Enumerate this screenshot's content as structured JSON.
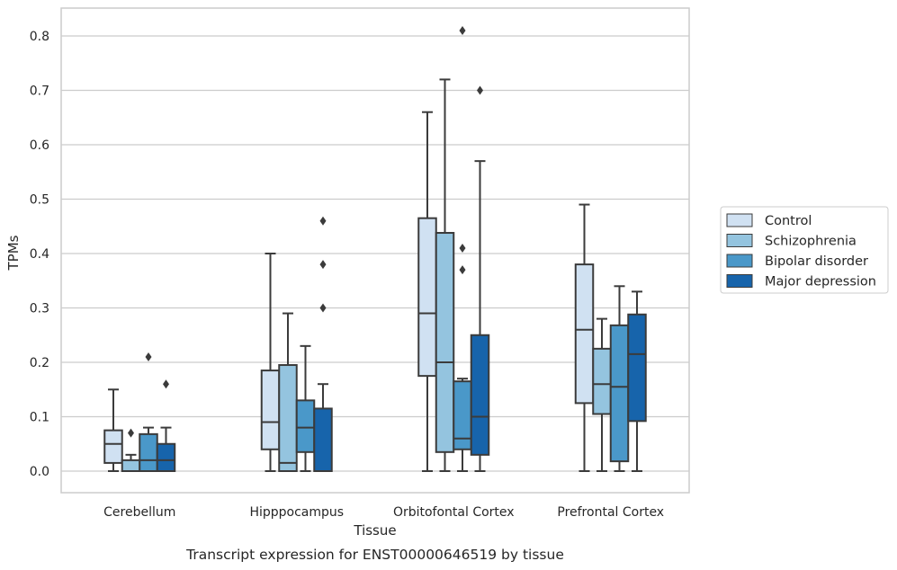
{
  "chart_data": {
    "type": "box",
    "xlabel": "Tissue",
    "ylabel": "TPMs",
    "caption": "Transcript expression for ENST00000646519 by tissue",
    "ylim": [
      -0.04,
      0.85
    ],
    "yticks": [
      "0.0",
      "0.1",
      "0.2",
      "0.3",
      "0.4",
      "0.5",
      "0.6",
      "0.7",
      "0.8"
    ],
    "grid": true,
    "legend_position": "right",
    "categories": [
      "Cerebellum",
      "Hipppocampus",
      "Orbitofontal Cortex",
      "Prefrontal Cortex"
    ],
    "series": [
      {
        "name": "Control",
        "color": "#d0e1f2",
        "boxes": [
          {
            "whisker_low": 0.0,
            "q1": 0.015,
            "median": 0.05,
            "q3": 0.075,
            "whisker_high": 0.15,
            "outliers": []
          },
          {
            "whisker_low": 0.0,
            "q1": 0.04,
            "median": 0.09,
            "q3": 0.185,
            "whisker_high": 0.4,
            "outliers": []
          },
          {
            "whisker_low": 0.0,
            "q1": 0.175,
            "median": 0.29,
            "q3": 0.465,
            "whisker_high": 0.66,
            "outliers": []
          },
          {
            "whisker_low": 0.0,
            "q1": 0.125,
            "median": 0.26,
            "q3": 0.38,
            "whisker_high": 0.49,
            "outliers": []
          }
        ]
      },
      {
        "name": "Schizophrenia",
        "color": "#94c4df",
        "boxes": [
          {
            "whisker_low": 0.0,
            "q1": 0.0,
            "median": 0.0,
            "q3": 0.02,
            "whisker_high": 0.03,
            "outliers": [
              0.07
            ]
          },
          {
            "whisker_low": 0.0,
            "q1": 0.0,
            "median": 0.015,
            "q3": 0.195,
            "whisker_high": 0.29,
            "outliers": []
          },
          {
            "whisker_low": 0.0,
            "q1": 0.035,
            "median": 0.2,
            "q3": 0.438,
            "whisker_high": 0.72,
            "outliers": []
          },
          {
            "whisker_low": 0.0,
            "q1": 0.105,
            "median": 0.16,
            "q3": 0.225,
            "whisker_high": 0.28,
            "outliers": []
          }
        ]
      },
      {
        "name": "Bipolar disorder",
        "color": "#4a98c9",
        "boxes": [
          {
            "whisker_low": 0.0,
            "q1": 0.0,
            "median": 0.02,
            "q3": 0.068,
            "whisker_high": 0.08,
            "outliers": [
              0.21
            ]
          },
          {
            "whisker_low": 0.0,
            "q1": 0.035,
            "median": 0.08,
            "q3": 0.13,
            "whisker_high": 0.23,
            "outliers": []
          },
          {
            "whisker_low": 0.0,
            "q1": 0.04,
            "median": 0.06,
            "q3": 0.165,
            "whisker_high": 0.17,
            "outliers": [
              0.37,
              0.41,
              0.81
            ]
          },
          {
            "whisker_low": 0.0,
            "q1": 0.018,
            "median": 0.155,
            "q3": 0.268,
            "whisker_high": 0.34,
            "outliers": []
          }
        ]
      },
      {
        "name": "Major depression",
        "color": "#1764ab",
        "boxes": [
          {
            "whisker_low": 0.0,
            "q1": 0.0,
            "median": 0.02,
            "q3": 0.05,
            "whisker_high": 0.08,
            "outliers": [
              0.16
            ]
          },
          {
            "whisker_low": 0.0,
            "q1": 0.0,
            "median": 0.0,
            "q3": 0.115,
            "whisker_high": 0.16,
            "outliers": [
              0.3,
              0.38,
              0.46
            ]
          },
          {
            "whisker_low": 0.0,
            "q1": 0.03,
            "median": 0.1,
            "q3": 0.25,
            "whisker_high": 0.57,
            "outliers": [
              0.7
            ]
          },
          {
            "whisker_low": 0.0,
            "q1": 0.092,
            "median": 0.215,
            "q3": 0.288,
            "whisker_high": 0.33,
            "outliers": []
          }
        ]
      }
    ]
  }
}
